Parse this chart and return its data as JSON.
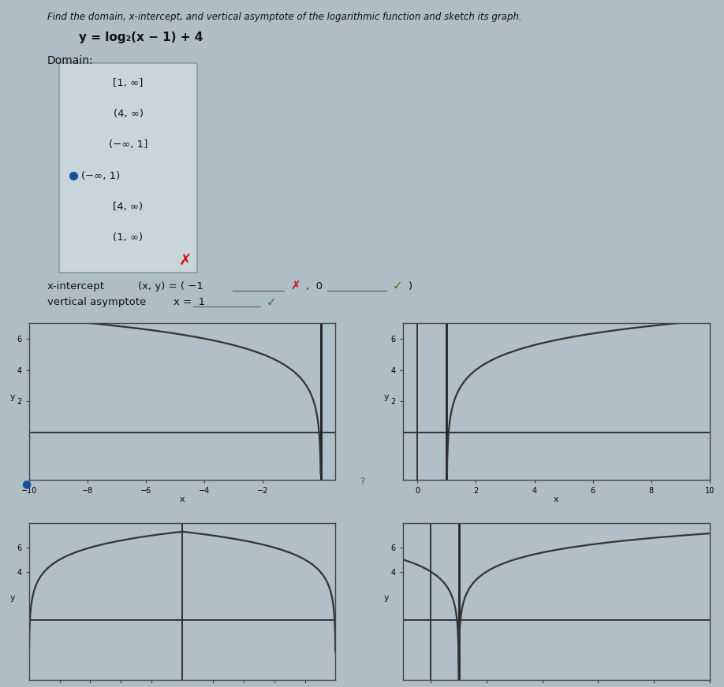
{
  "title": "Find the domain, x-intercept, and vertical asymptote of the logarithmic function and sketch its graph.",
  "equation": "y = log₂(x − 1) + 4",
  "domain_label": "Domain:",
  "domain_choices": [
    "[1, ∞]",
    "(4, ∞)",
    "(−∞, 1]",
    "(−∞, 1)",
    "[4, ∞)",
    "(1, ∞)"
  ],
  "selected_index": 3,
  "bg_color": "#aebdc6",
  "box_facecolor": "#c8d5db",
  "box_edgecolor": "#8a9faa",
  "text_color": "#111111",
  "radio_color": "#1a4fa0",
  "red_x_color": "#cc1111",
  "green_check_color": "#2a7a2a",
  "graph_bg": "#b0bfc8",
  "graph_line_color": "#333333",
  "asym_color": "#222222"
}
